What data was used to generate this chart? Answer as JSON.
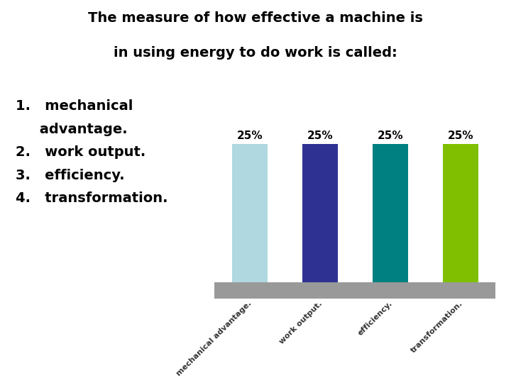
{
  "title_line1": "The measure of how effective a machine is",
  "title_line2": "in using energy to do work is called:",
  "list_items": [
    "1.   mechanical\n     advantage.",
    "2.   work output.",
    "3.   efficiency.",
    "4.   transformation."
  ],
  "categories": [
    "mechanical advantage.",
    "work output.",
    "efficiency.",
    "transformation."
  ],
  "values": [
    25,
    25,
    25,
    25
  ],
  "bar_colors": [
    "#b0d8e0",
    "#2e3192",
    "#008080",
    "#7fbf00"
  ],
  "bar_labels": [
    "25%",
    "25%",
    "25%",
    "25%"
  ],
  "background_color": "#ffffff",
  "text_color": "#000000",
  "base_color": "#999999",
  "label_color": "#333333",
  "title_fontsize": 14,
  "list_fontsize": 14,
  "bar_label_fontsize": 11,
  "tick_label_fontsize": 8
}
